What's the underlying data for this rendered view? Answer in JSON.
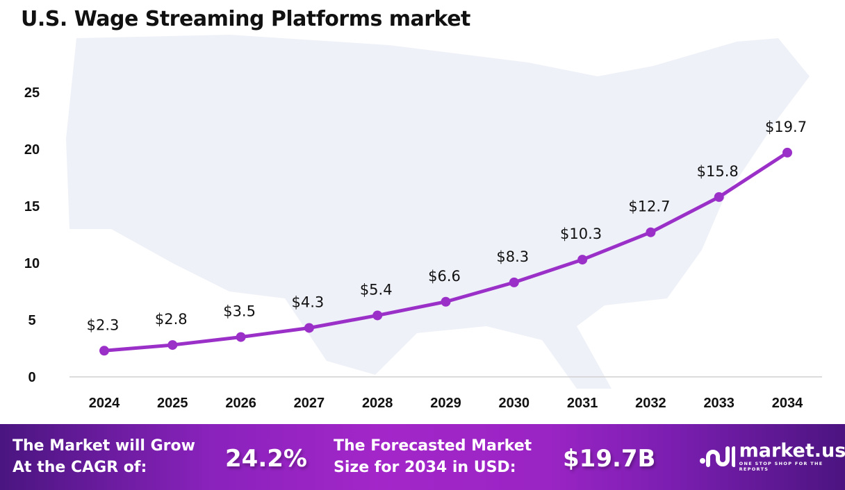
{
  "chart_data": {
    "type": "line",
    "title": "U.S. Wage Streaming Platforms market",
    "categories": [
      "2024",
      "2025",
      "2026",
      "2027",
      "2028",
      "2029",
      "2030",
      "2031",
      "2032",
      "2033",
      "2034"
    ],
    "values": [
      2.3,
      2.8,
      3.5,
      4.3,
      5.4,
      6.6,
      8.3,
      10.3,
      12.7,
      15.8,
      19.7
    ],
    "data_labels": [
      "$2.3",
      "$2.8",
      "$3.5",
      "$4.3",
      "$5.4",
      "$6.6",
      "$8.3",
      "$10.3",
      "$12.7",
      "$15.8",
      "$19.7"
    ],
    "yticks": [
      0,
      5,
      10,
      15,
      20,
      25
    ],
    "ylim": [
      0,
      25
    ],
    "grid": false,
    "line_color": "#9b30c8"
  },
  "footer": {
    "cagr_label_1": "The Market will Grow",
    "cagr_label_2": "At the CAGR of:",
    "cagr_value": "24.2%",
    "forecast_label_1": "The Forecasted Market",
    "forecast_label_2": "Size for 2034 in USD:",
    "forecast_value": "$19.7B",
    "logo_name": "market.us",
    "logo_tagline": "ONE STOP SHOP FOR THE REPORTS"
  }
}
